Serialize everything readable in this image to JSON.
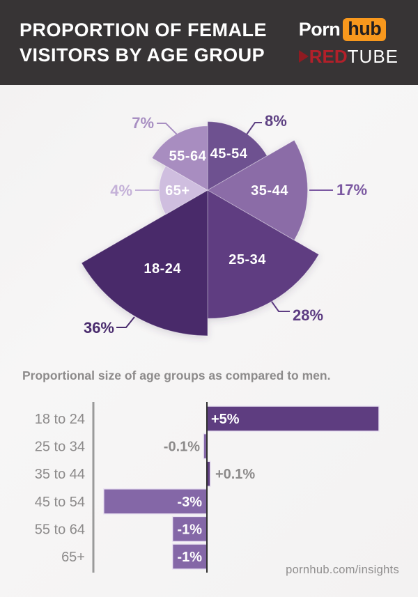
{
  "header": {
    "title_line1": "PROPORTION OF FEMALE",
    "title_line2": "VISITORS BY AGE GROUP",
    "pornhub": {
      "porn": "Porn",
      "hub": "hub"
    },
    "redtube": {
      "red": "RED",
      "tube": "TUBE"
    }
  },
  "footer": {
    "text": "pornhub.com/insights"
  },
  "colors": {
    "header_bg": "#373435",
    "pornhub_orange": "#f8981d",
    "redtube_red": "#b2202a",
    "text_gray": "#8c8a8a",
    "axis_gray": "#9a9a9a",
    "zero_line": "#2f2f2f",
    "bar_border": "#eae3f2",
    "slice_border": "rgba(255,255,255,0.35)"
  },
  "chart_data": [
    {
      "type": "pie",
      "variant": "polar-area",
      "title": "Proportion of female visitors by age group",
      "unit": "percent",
      "start_angle_deg": 0,
      "angle_per_slice_deg": 60,
      "radius_scale": "sqrt",
      "slices": [
        {
          "label": "45-54",
          "value": 8,
          "pct_label": "8%",
          "color": "#6e5190",
          "callout_color": "#5e4183"
        },
        {
          "label": "35-44",
          "value": 17,
          "pct_label": "17%",
          "color": "#8b6ca7",
          "callout_color": "#7b58a1"
        },
        {
          "label": "25-34",
          "value": 28,
          "pct_label": "28%",
          "color": "#5e3c81",
          "callout_color": "#5d3c82"
        },
        {
          "label": "18-24",
          "value": 36,
          "pct_label": "36%",
          "color": "#482a6b",
          "callout_color": "#4a2c6e"
        },
        {
          "label": "65+",
          "value": 4,
          "pct_label": "4%",
          "color": "#cfbedf",
          "callout_color": "#c4b1d8"
        },
        {
          "label": "55-64",
          "value": 7,
          "pct_label": "7%",
          "color": "#a88dc0",
          "callout_color": "#a88fc2"
        }
      ]
    },
    {
      "type": "bar",
      "orientation": "horizontal",
      "subtitle": "Proportional size of age groups as compared to men.",
      "categories": [
        "18 to 24",
        "25 to 34",
        "35 to 44",
        "45 to 54",
        "55 to 64",
        "65+"
      ],
      "values": [
        5,
        -0.1,
        0.1,
        -3,
        -1,
        -1
      ],
      "value_labels": [
        "+5%",
        "-0.1%",
        "+0.1%",
        "-3%",
        "-1%",
        "-1%"
      ],
      "positive_color": "#5e3d80",
      "negative_color": "#8467a7",
      "xlim": [
        -4,
        5.5
      ],
      "grid": false
    }
  ]
}
